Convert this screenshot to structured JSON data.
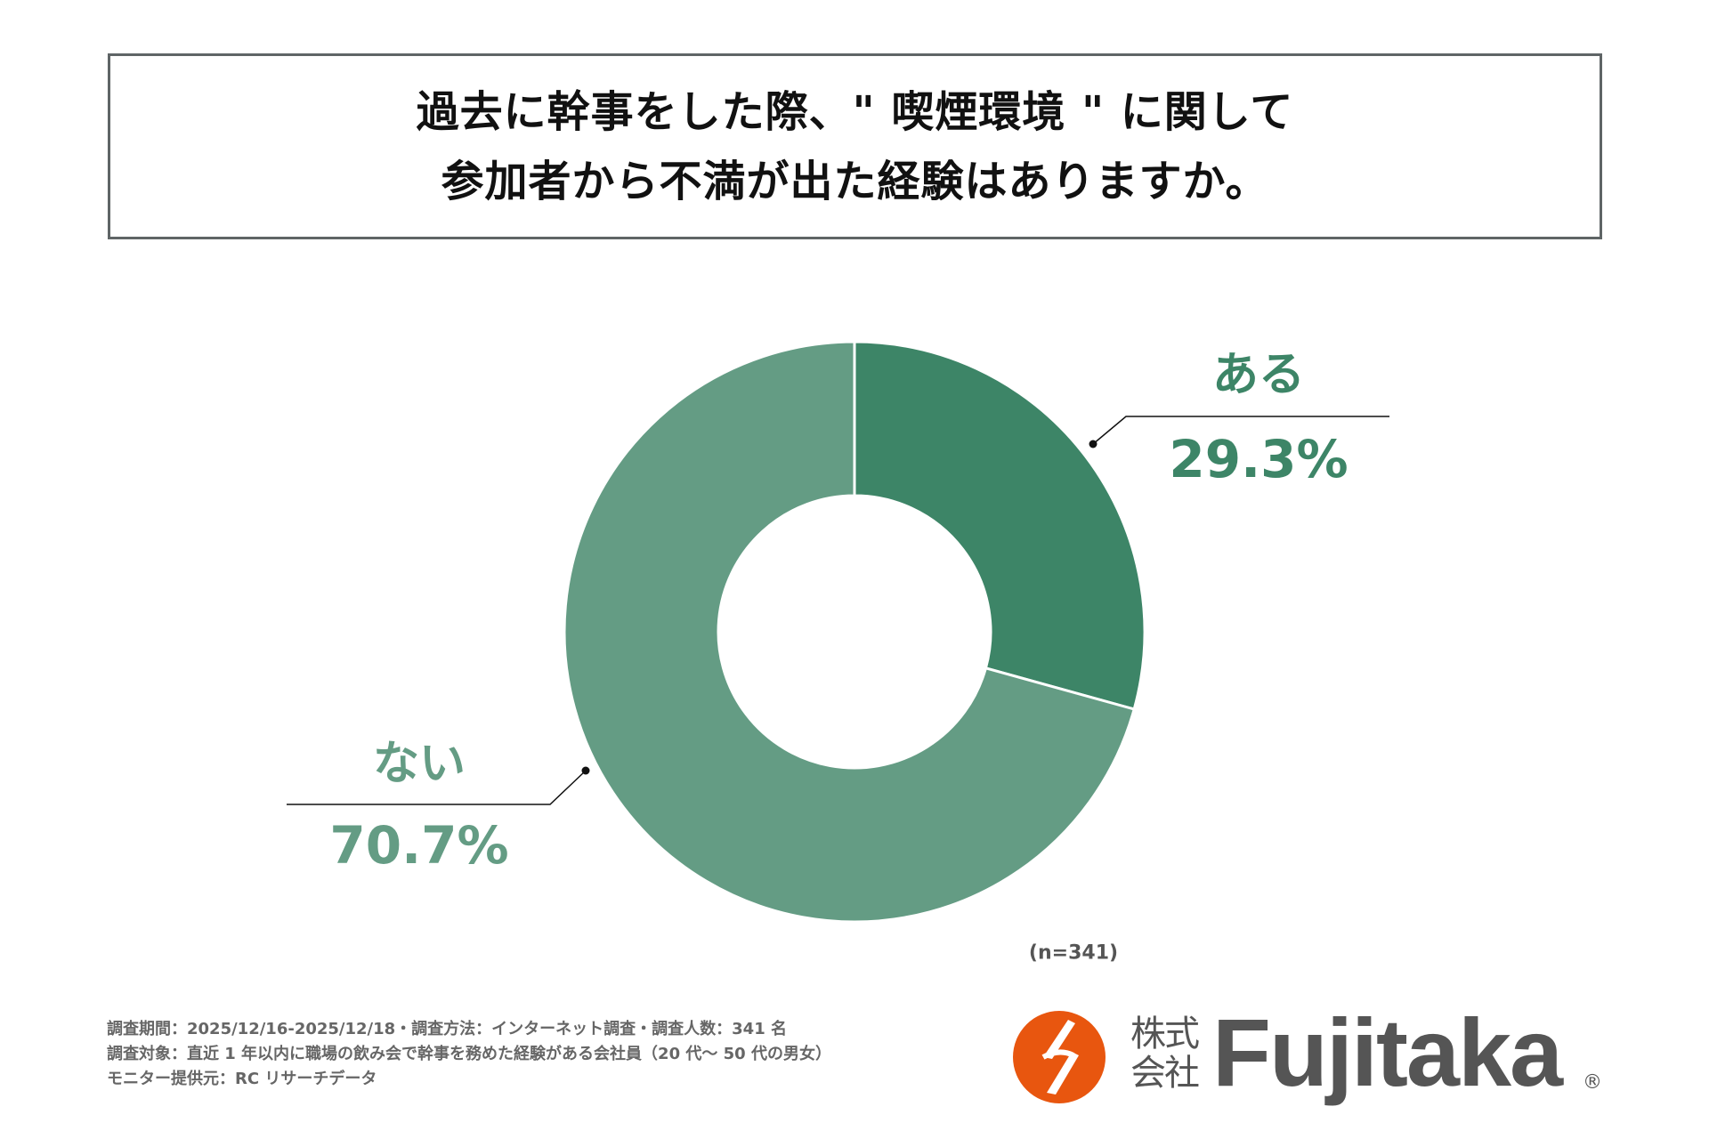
{
  "title": {
    "line1": "過去に幹事をした際、\" 喫煙環境 \" に関して",
    "line2": "参加者から不満が出た経験はありますか。"
  },
  "chart_data": {
    "type": "pie",
    "donut": true,
    "categories": [
      "ある",
      "ない"
    ],
    "values": [
      29.3,
      70.7
    ],
    "labels": [
      "29.3%",
      "70.7%"
    ],
    "colors": [
      "#3d8567",
      "#649c84"
    ],
    "start": "top, clockwise",
    "note": "(n=341)"
  },
  "footer": {
    "line1": "調査期間：2025/12/16-2025/12/18・調査方法：インターネット調査・調査人数：341 名",
    "line2": "調査対象：直近 1 年以内に職場の飲み会で幹事を務めた経験がある会社員（20 代～ 50 代の男女）",
    "line3": "モニター提供元：RC リサーチデータ"
  },
  "logo": {
    "kk": "株式会社",
    "word": "Fujitaka",
    "reg": "®",
    "color": "#e8560f"
  }
}
